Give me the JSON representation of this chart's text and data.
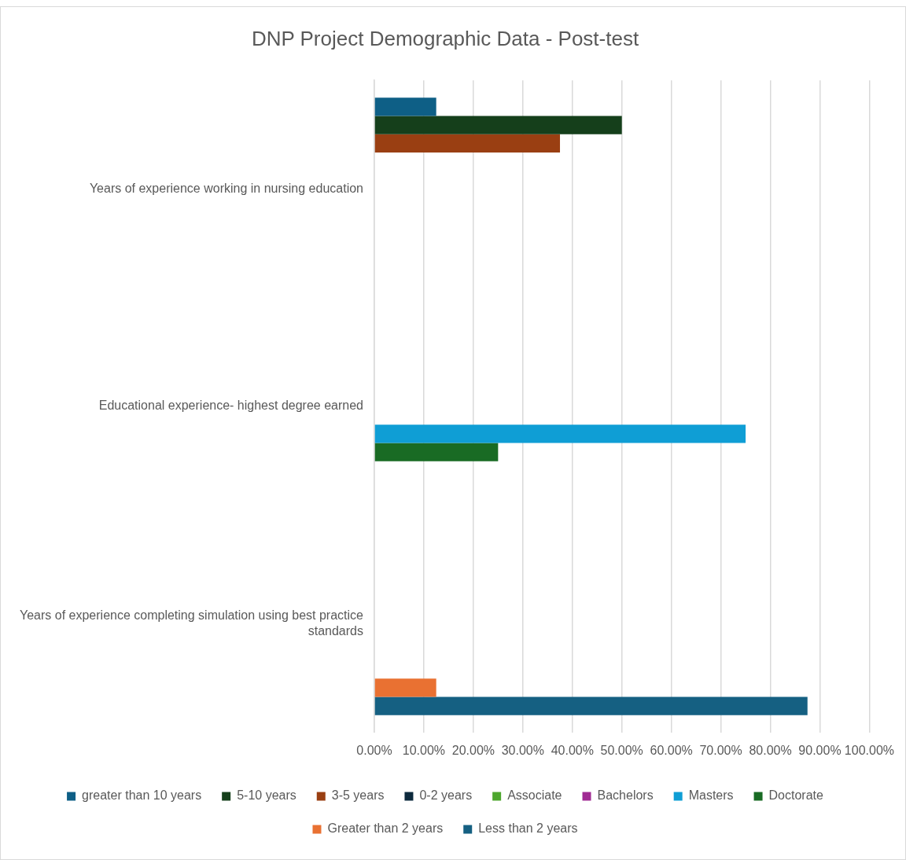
{
  "chart_data": {
    "type": "bar",
    "orientation": "horizontal",
    "title": "DNP Project Demographic Data - Post-test",
    "categories": [
      "Years of experience working in nursing education",
      "Educational experience- highest degree earned",
      "Years of experience completing simulation using best practice standards"
    ],
    "series": [
      {
        "name": "greater than 10 years",
        "color": "#0e5f86",
        "values": [
          12.5,
          null,
          null
        ]
      },
      {
        "name": "5-10 years",
        "color": "#153f1b",
        "values": [
          50,
          null,
          null
        ]
      },
      {
        "name": "3-5 years",
        "color": "#9a3f12",
        "values": [
          37.5,
          null,
          null
        ]
      },
      {
        "name": "0-2 years",
        "color": "#0d2a3d",
        "values": [
          0,
          null,
          null
        ]
      },
      {
        "name": "Associate",
        "color": "#4ea72e",
        "values": [
          null,
          0,
          null
        ]
      },
      {
        "name": "Bachelors",
        "color": "#a02b93",
        "values": [
          null,
          0,
          null
        ]
      },
      {
        "name": "Masters",
        "color": "#0f9ed5",
        "values": [
          null,
          75,
          null
        ]
      },
      {
        "name": "Doctorate",
        "color": "#196b24",
        "values": [
          null,
          25,
          null
        ]
      },
      {
        "name": "Greater than 2 years",
        "color": "#e97132",
        "values": [
          null,
          null,
          12.5
        ]
      },
      {
        "name": "Less than 2 years",
        "color": "#156082",
        "values": [
          null,
          null,
          87.5
        ]
      }
    ],
    "xlim": [
      0,
      100
    ],
    "xticks": [
      {
        "value": 0,
        "label": "0.00%"
      },
      {
        "value": 10,
        "label": "10.00%"
      },
      {
        "value": 20,
        "label": "20.00%"
      },
      {
        "value": 30,
        "label": "30.00%"
      },
      {
        "value": 40,
        "label": "40.00%"
      },
      {
        "value": 50,
        "label": "50.00%"
      },
      {
        "value": 60,
        "label": "60.00%"
      },
      {
        "value": 70,
        "label": "70.00%"
      },
      {
        "value": 80,
        "label": "80.00%"
      },
      {
        "value": 90,
        "label": "90.00%"
      },
      {
        "value": 100,
        "label": "100.00%"
      }
    ],
    "grid": "x",
    "legend": "bottom"
  }
}
